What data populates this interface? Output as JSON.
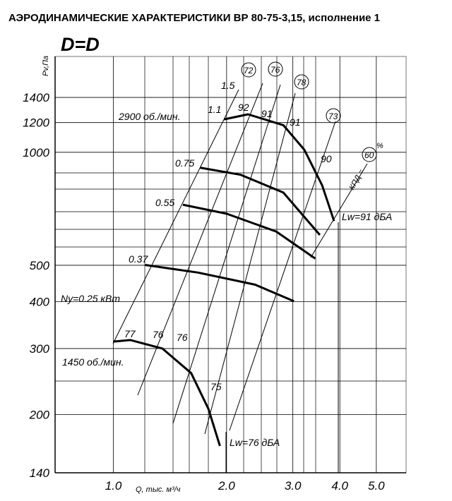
{
  "chart_data": {
    "type": "line",
    "title": "АЭРОДИНАМИЧЕСКИЕ ХАРАКТЕРИСТИКИ ВР 80-75-3,15, исполнение 1",
    "subtitle": "D=D",
    "y_label": "Pv,Па",
    "x_label": "Q, тыс. м³/ч",
    "x_scale": "log",
    "y_scale": "log",
    "xlim": [
      0.7,
      6
    ],
    "ylim": [
      140,
      1800
    ],
    "xticks": [
      {
        "value": 1,
        "label": "1.0"
      },
      {
        "value": 2,
        "label": "2.0"
      },
      {
        "value": 3,
        "label": "3.0"
      },
      {
        "value": 4,
        "label": "4.0"
      },
      {
        "value": 5,
        "label": "5.0"
      }
    ],
    "yticks": [
      140,
      200,
      300,
      400,
      500,
      1000,
      1200,
      1400
    ],
    "grid": true,
    "series": [
      {
        "name": "2900 об./мин.",
        "color": "#000000",
        "x": [
          1.97,
          2.28,
          2.83,
          3.22,
          3.59,
          3.86
        ],
        "values": [
          1224,
          1262,
          1181,
          1015,
          816,
          656
        ]
      },
      {
        "name": "1450 об./мин.",
        "color": "#000000",
        "x": [
          1.0,
          1.11,
          1.35,
          1.61,
          1.79,
          1.92
        ],
        "values": [
          313,
          316,
          300,
          258,
          207,
          165
        ]
      },
      {
        "name": "0.37",
        "color": "#000000",
        "x": [
          1.215,
          1.68,
          2.38,
          3.02
        ],
        "values": [
          501,
          478,
          444,
          401
        ]
      },
      {
        "name": "0.55",
        "color": "#000000",
        "x": [
          1.53,
          2.0,
          2.71,
          3.44
        ],
        "values": [
          725,
          686,
          615,
          521
        ]
      },
      {
        "name": "0.75",
        "color": "#000000",
        "x": [
          1.7,
          2.18,
          2.83,
          3.54
        ],
        "values": [
          910,
          871,
          781,
          602
        ]
      }
    ],
    "annotations": [
      "1.5",
      "1.1",
      "92",
      "91",
      "91",
      "90",
      "77",
      "76",
      "76",
      "75",
      "72",
      "76",
      "78",
      "73",
      "КПД =",
      "60",
      "%",
      "Ny=0.25 кВт",
      "Lw=91 дБА",
      "Lw=76 дБА"
    ]
  }
}
